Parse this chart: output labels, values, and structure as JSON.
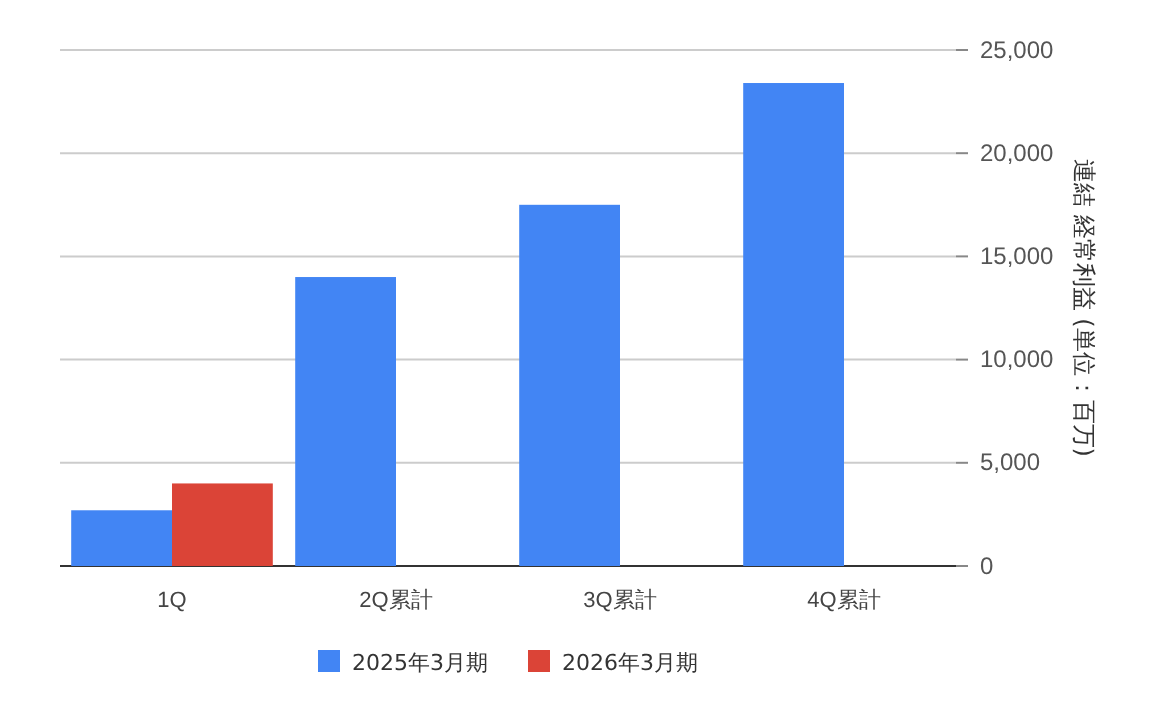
{
  "chart_data": {
    "type": "bar",
    "categories": [
      "1Q",
      "2Q累計",
      "3Q累計",
      "4Q累計"
    ],
    "series": [
      {
        "name": "2025年3月期",
        "color": "#4285f4",
        "values": [
          2700,
          14000,
          17500,
          23400
        ]
      },
      {
        "name": "2026年3月期",
        "color": "#db4437",
        "values": [
          4000,
          null,
          null,
          null
        ]
      }
    ],
    "ylabel": "連結 経常利益 (単位：百万)",
    "ylim": [
      0,
      25000
    ],
    "yticks": [
      {
        "value": 0,
        "label": "0"
      },
      {
        "value": 5000,
        "label": "5,000"
      },
      {
        "value": 10000,
        "label": "10,000"
      },
      {
        "value": 15000,
        "label": "15,000"
      },
      {
        "value": 20000,
        "label": "20,000"
      },
      {
        "value": 25000,
        "label": "25,000"
      }
    ],
    "grid": true,
    "legend": "bottom"
  }
}
